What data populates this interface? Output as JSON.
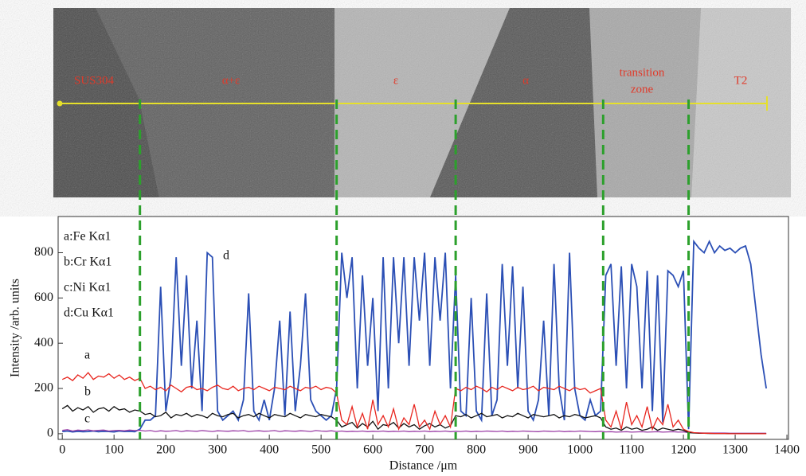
{
  "micrograph": {
    "phases": [
      {
        "lines": [
          "SUS304"
        ]
      },
      {
        "lines": [
          "α+ε"
        ]
      },
      {
        "lines": [
          "ε"
        ]
      },
      {
        "lines": [
          "α"
        ]
      },
      {
        "lines": [
          "transition",
          "zone"
        ]
      },
      {
        "lines": [
          "T2"
        ]
      }
    ]
  },
  "chart_data": {
    "type": "line",
    "x_label": "Distance /μm",
    "y_label": "Intensity /arb. units",
    "xlim": [
      -8,
      1403
    ],
    "ylim": [
      -25,
      960
    ],
    "xticks": [
      0,
      100,
      200,
      300,
      400,
      500,
      600,
      700,
      800,
      900,
      1000,
      1100,
      1200,
      1300,
      1400
    ],
    "yticks": [
      0,
      200,
      400,
      600,
      800
    ],
    "grid": false,
    "legend": "upper left",
    "boundaries": [
      150,
      530,
      760,
      1045,
      1210
    ],
    "boundary_color": "#2ca02c",
    "x": [
      0,
      10,
      20,
      30,
      40,
      50,
      60,
      70,
      80,
      90,
      100,
      110,
      120,
      130,
      140,
      150,
      160,
      170,
      180,
      190,
      200,
      210,
      220,
      230,
      240,
      250,
      260,
      270,
      280,
      290,
      300,
      310,
      320,
      330,
      340,
      350,
      360,
      370,
      380,
      390,
      400,
      410,
      420,
      430,
      440,
      450,
      460,
      470,
      480,
      490,
      500,
      510,
      520,
      530,
      540,
      550,
      560,
      570,
      580,
      590,
      600,
      610,
      620,
      630,
      640,
      650,
      660,
      670,
      680,
      690,
      700,
      710,
      720,
      730,
      740,
      750,
      760,
      770,
      780,
      790,
      800,
      810,
      820,
      830,
      840,
      850,
      860,
      870,
      880,
      890,
      900,
      910,
      920,
      930,
      940,
      950,
      960,
      970,
      980,
      990,
      1000,
      1010,
      1020,
      1030,
      1040,
      1050,
      1060,
      1070,
      1080,
      1090,
      1100,
      1110,
      1120,
      1130,
      1140,
      1150,
      1160,
      1170,
      1180,
      1190,
      1200,
      1210,
      1220,
      1230,
      1240,
      1250,
      1260,
      1270,
      1280,
      1290,
      1300,
      1310,
      1320,
      1330,
      1340,
      1350,
      1360
    ],
    "series": [
      {
        "name": "a:Fe Kα1",
        "label": "a",
        "color": "#e8261f",
        "values": [
          240,
          250,
          235,
          260,
          245,
          270,
          240,
          255,
          250,
          265,
          245,
          260,
          240,
          250,
          235,
          245,
          200,
          210,
          195,
          205,
          190,
          215,
          200,
          185,
          205,
          210,
          195,
          200,
          190,
          205,
          215,
          200,
          195,
          210,
          190,
          200,
          205,
          195,
          210,
          200,
          190,
          205,
          200,
          195,
          210,
          200,
          190,
          205,
          200,
          210,
          195,
          205,
          200,
          180,
          60,
          40,
          120,
          30,
          90,
          20,
          150,
          40,
          80,
          30,
          110,
          20,
          70,
          40,
          130,
          30,
          60,
          20,
          100,
          40,
          80,
          30,
          200,
          190,
          205,
          195,
          210,
          200,
          185,
          205,
          195,
          210,
          200,
          190,
          205,
          195,
          200,
          210,
          190,
          205,
          200,
          195,
          210,
          200,
          190,
          205,
          195,
          200,
          180,
          190,
          200,
          60,
          30,
          100,
          20,
          140,
          40,
          80,
          30,
          120,
          20,
          70,
          40,
          130,
          30,
          60,
          20,
          10,
          5,
          3,
          2,
          2,
          1,
          1,
          1,
          0,
          0,
          0,
          0,
          0,
          0,
          0,
          0
        ]
      },
      {
        "name": "b:Cr Kα1",
        "label": "b",
        "color": "#111111",
        "values": [
          110,
          125,
          100,
          115,
          105,
          120,
          95,
          110,
          115,
          100,
          120,
          105,
          110,
          95,
          105,
          100,
          85,
          90,
          75,
          80,
          95,
          70,
          85,
          80,
          90,
          75,
          85,
          80,
          70,
          90,
          80,
          75,
          85,
          90,
          70,
          80,
          85,
          75,
          90,
          80,
          70,
          85,
          80,
          75,
          90,
          80,
          70,
          85,
          80,
          75,
          85,
          80,
          75,
          60,
          30,
          40,
          50,
          25,
          45,
          30,
          55,
          20,
          40,
          35,
          50,
          25,
          45,
          30,
          40,
          20,
          35,
          45,
          30,
          40,
          25,
          35,
          80,
          75,
          85,
          70,
          80,
          90,
          75,
          80,
          85,
          70,
          80,
          75,
          90,
          80,
          70,
          85,
          80,
          75,
          80,
          85,
          70,
          80,
          75,
          85,
          80,
          70,
          75,
          80,
          70,
          30,
          20,
          25,
          15,
          30,
          20,
          25,
          15,
          20,
          30,
          15,
          25,
          20,
          15,
          20,
          15,
          5,
          3,
          2,
          2,
          1,
          1,
          1,
          1,
          0,
          0,
          0,
          0,
          0,
          0,
          0,
          0
        ]
      },
      {
        "name": "c:Ni Kα1",
        "label": "c",
        "color": "#9b3fa6",
        "values": [
          15,
          18,
          12,
          16,
          14,
          17,
          13,
          15,
          16,
          12,
          14,
          15,
          13,
          16,
          14,
          15,
          12,
          14,
          10,
          13,
          11,
          12,
          14,
          10,
          13,
          12,
          11,
          14,
          12,
          10,
          13,
          12,
          11,
          13,
          12,
          14,
          10,
          12,
          13,
          11,
          12,
          14,
          10,
          13,
          12,
          11,
          13,
          12,
          10,
          14,
          12,
          11,
          13,
          10,
          12,
          9,
          11,
          10,
          12,
          9,
          11,
          10,
          12,
          9,
          11,
          10,
          12,
          9,
          11,
          10,
          12,
          9,
          11,
          10,
          12,
          9,
          11,
          10,
          12,
          9,
          11,
          10,
          12,
          11,
          10,
          12,
          9,
          11,
          10,
          12,
          11,
          10,
          9,
          12,
          11,
          10,
          12,
          9,
          11,
          10,
          12,
          11,
          10,
          9,
          11,
          8,
          9,
          7,
          8,
          9,
          7,
          8,
          9,
          7,
          8,
          9,
          7,
          8,
          9,
          7,
          8,
          5,
          4,
          4,
          3,
          3,
          3,
          3,
          3,
          2,
          2,
          2,
          2,
          2,
          2,
          2,
          2
        ]
      },
      {
        "name": "d:Cu Kα1",
        "label": "d",
        "color": "#2b4fb5",
        "values": [
          10,
          12,
          8,
          11,
          9,
          10,
          12,
          9,
          11,
          10,
          8,
          12,
          10,
          11,
          9,
          20,
          60,
          60,
          80,
          650,
          100,
          250,
          780,
          300,
          700,
          200,
          500,
          100,
          800,
          780,
          100,
          60,
          80,
          100,
          60,
          150,
          620,
          100,
          60,
          150,
          60,
          200,
          500,
          80,
          540,
          100,
          300,
          620,
          150,
          100,
          80,
          60,
          80,
          200,
          800,
          600,
          780,
          200,
          700,
          300,
          600,
          100,
          780,
          200,
          780,
          400,
          780,
          300,
          780,
          500,
          800,
          300,
          780,
          500,
          800,
          200,
          700,
          100,
          80,
          600,
          100,
          60,
          620,
          80,
          150,
          750,
          300,
          740,
          200,
          650,
          100,
          60,
          150,
          500,
          80,
          750,
          200,
          60,
          800,
          200,
          80,
          60,
          150,
          80,
          100,
          700,
          750,
          300,
          740,
          200,
          750,
          650,
          200,
          720,
          100,
          700,
          50,
          720,
          700,
          650,
          720,
          20,
          850,
          820,
          800,
          850,
          800,
          830,
          810,
          820,
          800,
          820,
          830,
          750,
          550,
          350,
          200
        ]
      }
    ]
  }
}
